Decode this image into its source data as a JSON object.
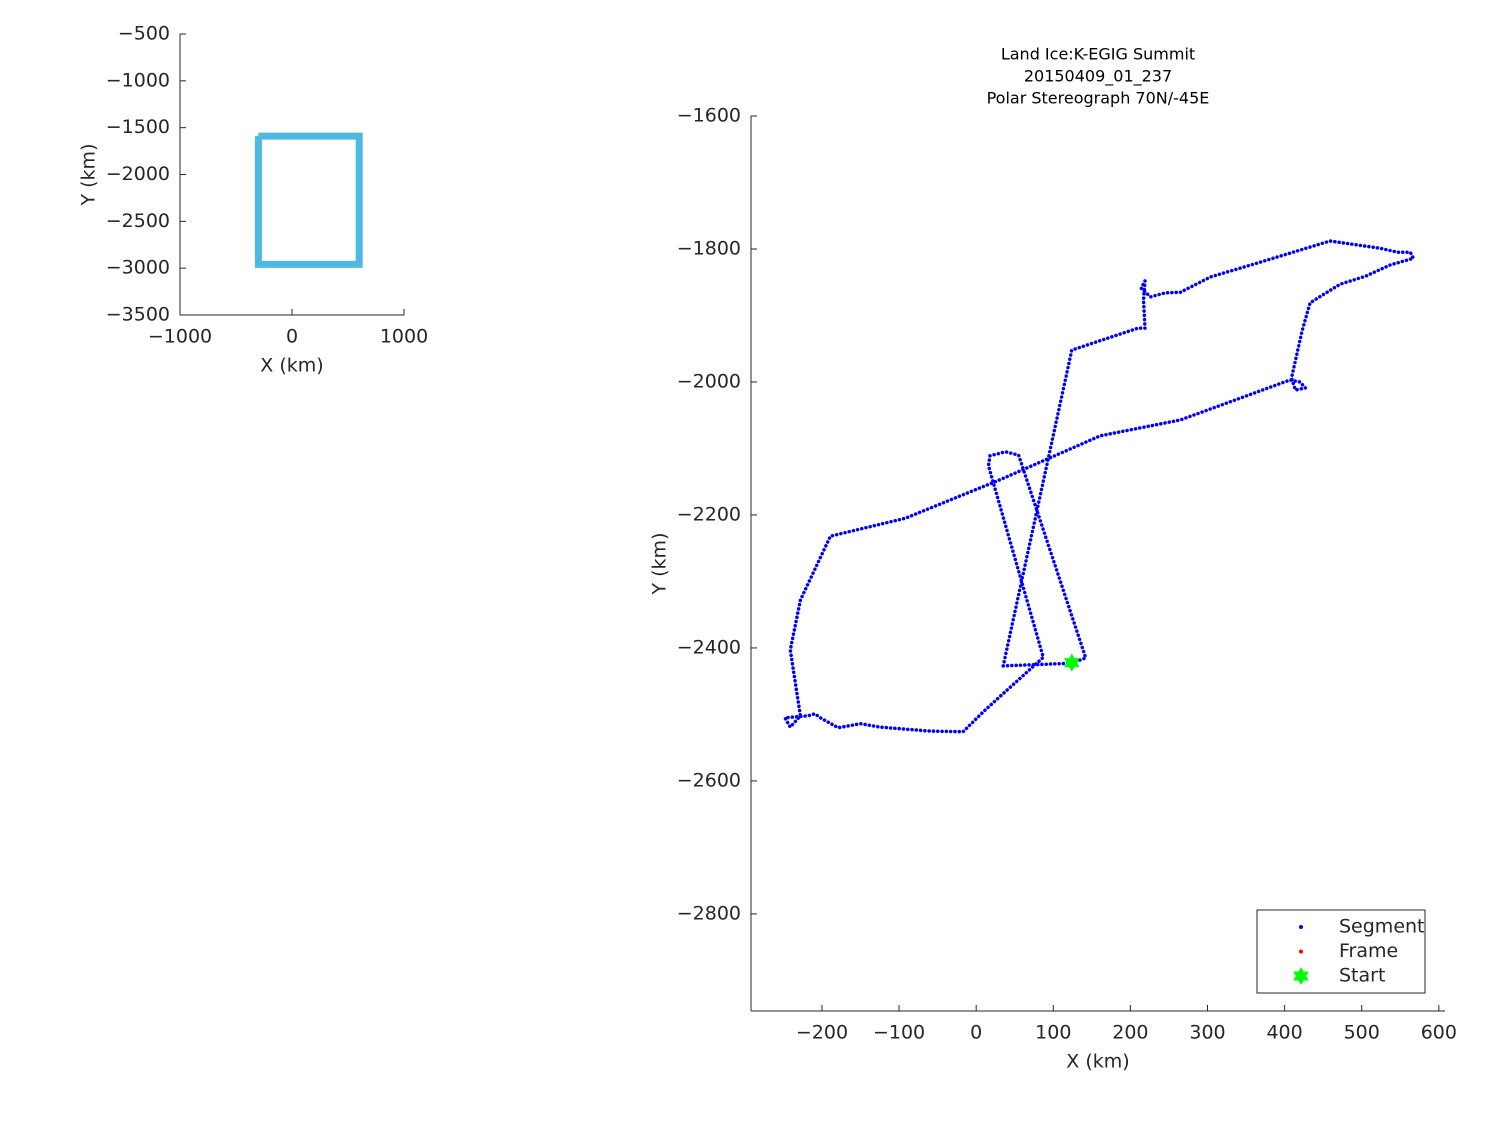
{
  "chart_data": [
    {
      "type": "line",
      "xlabel": "X (km)",
      "ylabel": "Y (km)",
      "xlim": [
        -1000,
        1000
      ],
      "xticks": [
        {
          "value": -1000,
          "label": "−1000"
        },
        0,
        1000
      ],
      "ylim": [
        -3500,
        -500
      ],
      "yticks": [
        {
          "value": -500,
          "label": "−500"
        },
        {
          "value": -1000,
          "label": "−1000"
        },
        {
          "value": -1500,
          "label": "−1500"
        },
        {
          "value": -2000,
          "label": "−2000"
        },
        {
          "value": -2500,
          "label": "−2500"
        },
        {
          "value": -3000,
          "label": "−3000"
        },
        {
          "value": -3500,
          "label": "−3500"
        }
      ],
      "series": [
        {
          "color": "#4db8e0",
          "x": [
            -300,
            600,
            600,
            -300,
            -300
          ],
          "y": [
            -1590,
            -1590,
            -2960,
            -2960,
            -1590
          ]
        }
      ]
    },
    {
      "type": "scatter",
      "title": [
        "Land Ice:K-EGIG Summit",
        "20150409_01_237",
        "Polar Stereograph 70N/-45E"
      ],
      "xlabel": "X (km)",
      "ylabel": "Y (km)",
      "xlim": [
        -292,
        608
      ],
      "xticks": [
        {
          "value": -200,
          "label": "−200"
        },
        {
          "value": -100,
          "label": "−100"
        },
        0,
        100,
        200,
        300,
        400,
        500,
        600
      ],
      "ylim": [
        -2946,
        -1600
      ],
      "yticks": [
        {
          "value": -1600,
          "label": "−1600"
        },
        {
          "value": -1800,
          "label": "−1800"
        },
        {
          "value": -2000,
          "label": "−2000"
        },
        {
          "value": -2200,
          "label": "−2200"
        },
        {
          "value": -2400,
          "label": "−2400"
        },
        {
          "value": -2600,
          "label": "−2600"
        },
        {
          "value": -2800,
          "label": "−2800"
        }
      ],
      "legend": "southeast",
      "series": [
        {
          "name": "Segment",
          "color": "#0000ff",
          "marker": "point",
          "x": [
            124,
            142,
            55,
            38,
            18,
            16,
            87,
            12,
            -17,
            -60,
            -125,
            -150,
            -179,
            -202,
            -209,
            -218,
            -248,
            -241,
            -228,
            -241,
            -228,
            -189,
            -92,
            31,
            161,
            265,
            407,
            420,
            427,
            414,
            409,
            423,
            433,
            472,
            505,
            537,
            567,
            563,
            547,
            524,
            459,
            368,
            304,
            265,
            245,
            226,
            214,
            219,
            217,
            219,
            210,
            124,
            35,
            124
          ],
          "y": [
            -2423,
            -2415,
            -2110,
            -2105,
            -2111,
            -2126,
            -2414,
            -2493,
            -2526,
            -2525,
            -2519,
            -2514,
            -2520,
            -2505,
            -2499,
            -2502,
            -2505,
            -2519,
            -2502,
            -2403,
            -2328,
            -2232,
            -2205,
            -2147,
            -2081,
            -2057,
            -1997,
            -2000,
            -2009,
            -2012,
            -1994,
            -1922,
            -1881,
            -1853,
            -1841,
            -1824,
            -1814,
            -1805,
            -1805,
            -1799,
            -1788,
            -1820,
            -1842,
            -1865,
            -1866,
            -1872,
            -1859,
            -1848,
            -1877,
            -1919,
            -1919,
            -1952,
            -2427,
            -2423
          ]
        },
        {
          "name": "Frame",
          "color": "#ff0000",
          "marker": "point",
          "x": [
            124
          ],
          "y": [
            -2422
          ]
        },
        {
          "name": "Start",
          "color": "#00ff00",
          "marker": "hexagram",
          "x": [
            124
          ],
          "y": [
            -2422
          ]
        }
      ]
    }
  ]
}
